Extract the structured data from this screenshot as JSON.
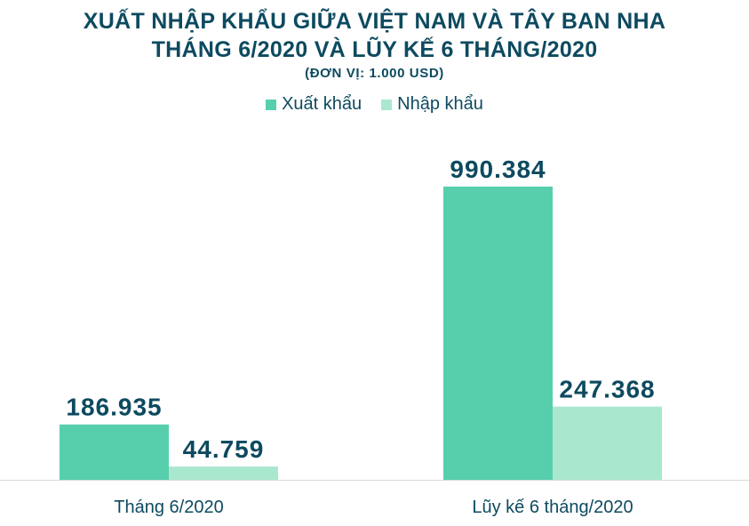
{
  "chart_data": {
    "type": "bar",
    "title": "XUẤT NHẬP KHẨU GIỮA VIỆT NAM VÀ TÂY BAN NHA",
    "title_line2": "THÁNG 6/2020 VÀ LŨY KẾ 6 THÁNG/2020",
    "subtitle": "(ĐƠN VỊ: 1.000 USD)",
    "categories": [
      "Tháng 6/2020",
      "Lũy kế 6 tháng/2020"
    ],
    "series": [
      {
        "name": "Xuất khẩu",
        "color": "#57cfad",
        "values": [
          186935,
          990384
        ],
        "labels": [
          "186.935",
          "990.384"
        ]
      },
      {
        "name": "Nhập khẩu",
        "color": "#a9e8cf",
        "values": [
          44759,
          247368
        ],
        "labels": [
          "44.759",
          "247.368"
        ]
      }
    ],
    "ylim": [
      0,
      1100000
    ],
    "grid": false,
    "legend_position": "top-center"
  }
}
